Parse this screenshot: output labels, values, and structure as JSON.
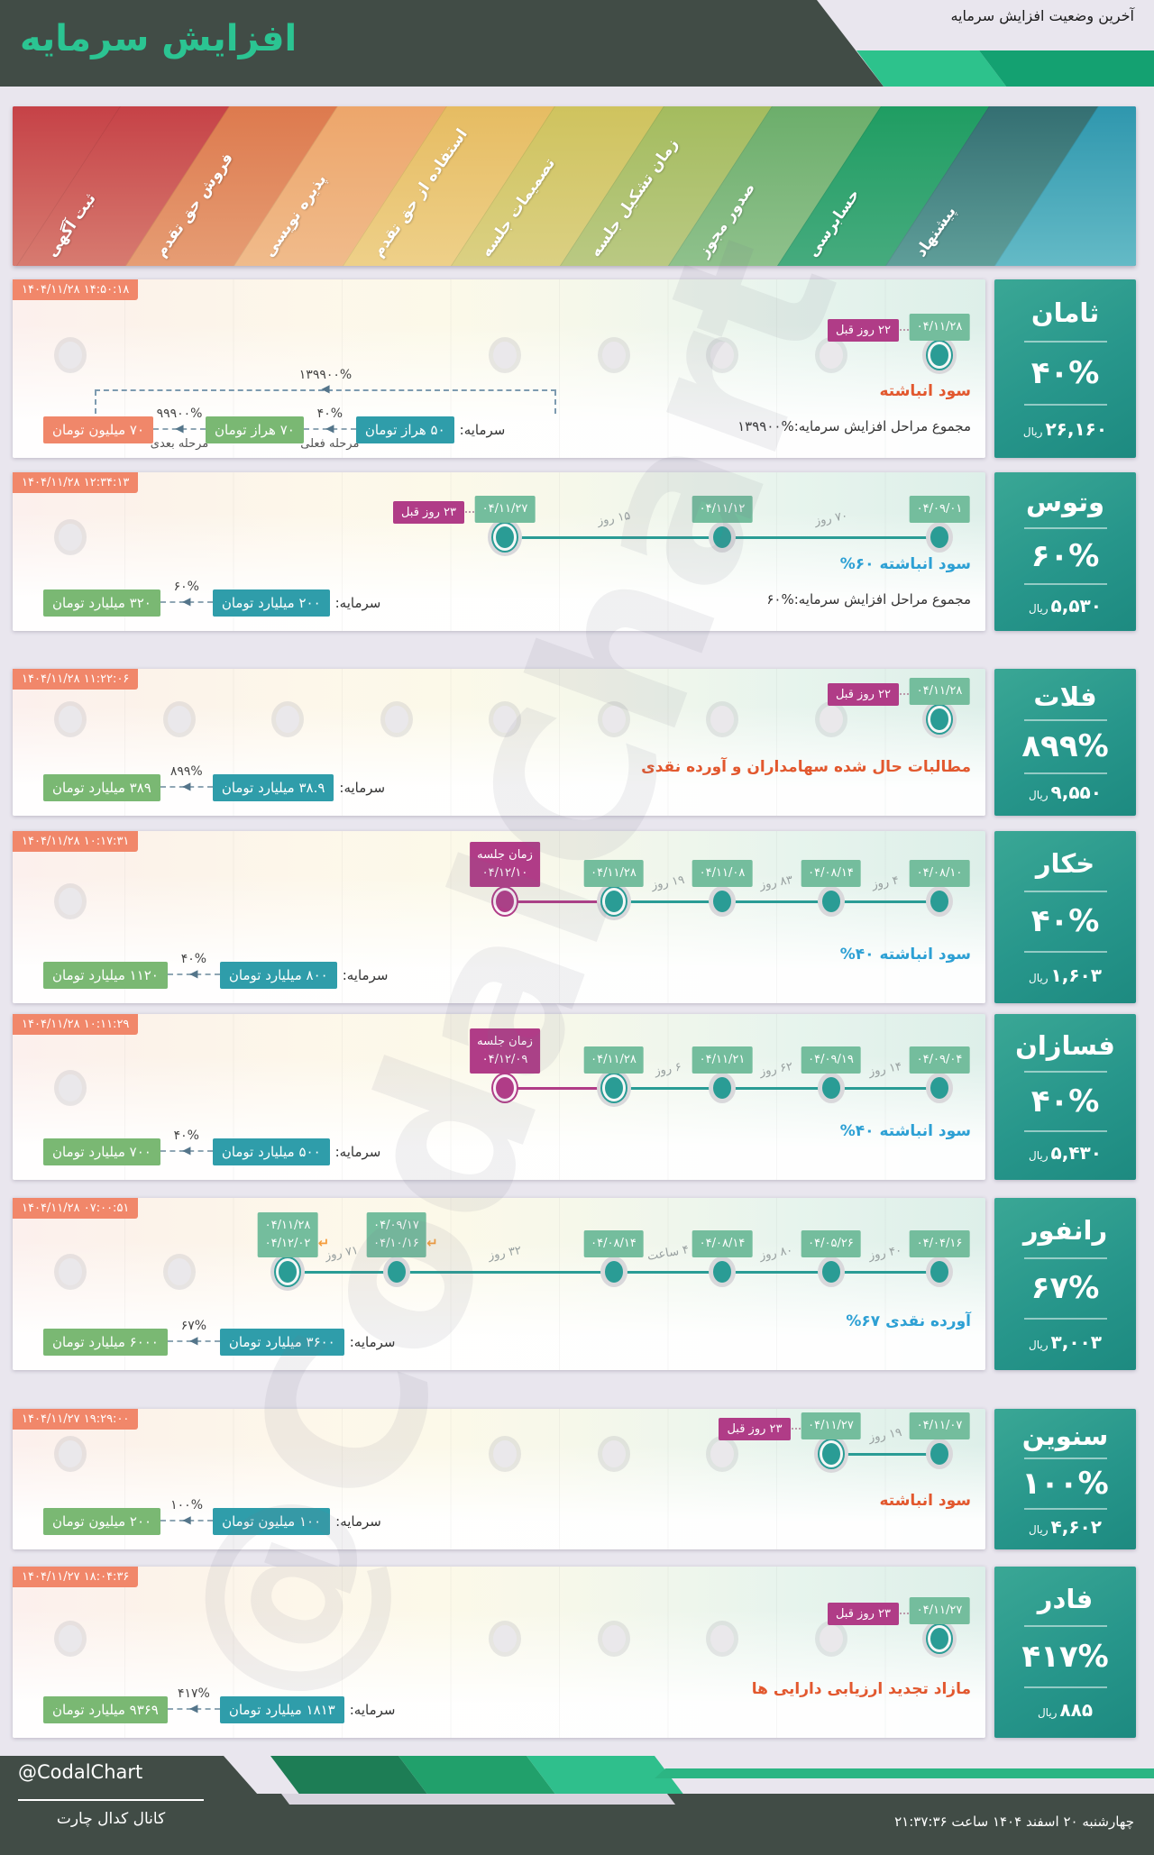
{
  "header": {
    "title": "افزایش سرمایه",
    "top_right": "آخرین وضعیت افزایش سرمایه"
  },
  "watermark": "@CodalChart",
  "stages": [
    "پیشنهاد",
    "حسابرسی",
    "صدور مجوز",
    "زمان تشکیل جلسه",
    "تصمیمات جلسه",
    "استفاده از حق تقدم",
    "پذیره نویسی",
    "فروش حق تقدم",
    "ثبت آگهی"
  ],
  "colors": {
    "accent_teal": "#2a9c95",
    "magenta": "#b03c87",
    "badge_green": "#74bd9d",
    "badge_salmon": "#f0876a",
    "badge_capital": "#2f9daa",
    "badge_result": "#7ab873",
    "status_orange": "#e2582e",
    "status_blue": "#2da0d4",
    "dark": "#414c46",
    "title_green": "#2bc492",
    "ribbon": [
      [
        "#c64247",
        "#d77b70"
      ],
      [
        "#dd7a4e",
        "#e69d74"
      ],
      [
        "#eda66b",
        "#f0bb8b"
      ],
      [
        "#e6bc62",
        "#eed089"
      ],
      [
        "#cfc35e",
        "#dbd083"
      ],
      [
        "#a4bc5e",
        "#bac983"
      ],
      [
        "#6cae6b",
        "#8fc18c"
      ],
      [
        "#1f9d62",
        "#46ab7e"
      ],
      [
        "#346f72",
        "#5f9e99"
      ],
      [
        "#2f97ae",
        "#64bac6"
      ]
    ]
  },
  "rows": [
    {
      "name": "ثامان",
      "pct": "۴۰%",
      "price": "۲۶,۱۶۰",
      "unit": "ریال",
      "timestamp": "۱۴۰۴/۱۱/۲۸ ۱۴:۵۰:۱۸",
      "status": {
        "text": "سود انباشته",
        "color": "orange"
      },
      "total": "مجموع مراحل افزایش سرمایه:%۱۳۹۹۰۰",
      "timeline": {
        "dots": [
          {
            "pos": 8,
            "state": "current"
          }
        ],
        "ghosts": [
          0,
          4,
          5,
          6,
          7
        ],
        "lines": [],
        "badges": [
          {
            "pos": 8,
            "lines": [
              "۰۴/۱۱/۲۸"
            ],
            "color": "green",
            "tag": "۲۲ روز قبل"
          }
        ],
        "gaps": []
      },
      "chain": {
        "label": "سرمایه:",
        "start": "۵۰ هراز تومان",
        "steps": [
          {
            "pct": "۴۰%",
            "sub": "مرحله فعلی",
            "value": "۷۰ هراز تومان",
            "color": "green"
          },
          {
            "pct": "۹۹۹۰۰%",
            "sub": "مرحله بعدی",
            "value": "۷۰ میلیون تومان",
            "color": "salmon"
          }
        ],
        "overline_pct": "۱۳۹۹۰۰%"
      }
    },
    {
      "name": "وتوس",
      "pct": "۶۰%",
      "price": "۵,۵۳۰",
      "unit": "ریال",
      "timestamp": "۱۴۰۴/۱۱/۲۸ ۱۲:۳۴:۱۳",
      "status": {
        "text": "%۶۰ سود انباشته",
        "color": "blue"
      },
      "total": "مجموع مراحل افزایش سرمایه:%۶۰",
      "timeline": {
        "dots": [
          {
            "pos": 4,
            "state": "current"
          },
          {
            "pos": 6,
            "state": "done"
          },
          {
            "pos": 8,
            "state": "done"
          }
        ],
        "ghosts": [
          0
        ],
        "lines": [
          {
            "from": 4,
            "to": 8,
            "color": "teal"
          }
        ],
        "badges": [
          {
            "pos": 4,
            "lines": [
              "۰۴/۱۱/۲۷"
            ],
            "color": "green",
            "tag": "۲۳ روز قبل"
          },
          {
            "pos": 6,
            "lines": [
              "۰۴/۱۱/۱۲"
            ],
            "color": "green"
          },
          {
            "pos": 8,
            "lines": [
              "۰۴/۰۹/۰۱"
            ],
            "color": "green"
          }
        ],
        "gaps": [
          {
            "from": 4,
            "to": 6,
            "text": "۱۵ روز"
          },
          {
            "from": 6,
            "to": 8,
            "text": "۷۰ روز"
          }
        ]
      },
      "chain": {
        "label": "سرمایه:",
        "start": "۲۰۰ میلیارد تومان",
        "steps": [
          {
            "pct": "۶۰%",
            "value": "۳۲۰ میلیارد تومان",
            "color": "green"
          }
        ]
      }
    },
    {
      "name": "فلات",
      "pct": "۸۹۹%",
      "price": "۹,۵۵۰",
      "unit": "ریال",
      "timestamp": "۱۴۰۴/۱۱/۲۸ ۱۱:۲۲:۰۶",
      "status": {
        "text": "مطالبات حال شده سهامداران و آورده نقدی",
        "color": "orange"
      },
      "total": null,
      "timeline": {
        "dots": [
          {
            "pos": 8,
            "state": "current"
          }
        ],
        "ghosts": [
          0,
          1,
          2,
          3,
          4,
          5,
          6,
          7
        ],
        "lines": [],
        "badges": [
          {
            "pos": 8,
            "lines": [
              "۰۴/۱۱/۲۸"
            ],
            "color": "green",
            "tag": "۲۲ روز قبل"
          }
        ],
        "gaps": []
      },
      "chain": {
        "label": "سرمایه:",
        "start": "۳۸.۹ میلیارد تومان",
        "steps": [
          {
            "pct": "۸۹۹%",
            "value": "۳۸۹ میلیارد تومان",
            "color": "green"
          }
        ]
      }
    },
    {
      "name": "خکار",
      "pct": "۴۰%",
      "price": "۱,۶۰۳",
      "unit": "ریال",
      "timestamp": "۱۴۰۴/۱۱/۲۸ ۱۰:۱۷:۳۱",
      "status": {
        "text": "%۴۰ سود انباشته",
        "color": "blue"
      },
      "total": null,
      "timeline": {
        "dots": [
          {
            "pos": 4,
            "state": "magenta"
          },
          {
            "pos": 5,
            "state": "current"
          },
          {
            "pos": 6,
            "state": "done"
          },
          {
            "pos": 7,
            "state": "done"
          },
          {
            "pos": 8,
            "state": "done"
          }
        ],
        "ghosts": [
          0
        ],
        "lines": [
          {
            "from": 4,
            "to": 5,
            "color": "magenta"
          },
          {
            "from": 5,
            "to": 8,
            "color": "teal"
          }
        ],
        "badges": [
          {
            "pos": 4,
            "lines": [
              "زمان جلسه",
              "۰۴/۱۲/۱۰"
            ],
            "color": "magenta"
          },
          {
            "pos": 5,
            "lines": [
              "۰۴/۱۱/۲۸"
            ],
            "color": "green"
          },
          {
            "pos": 6,
            "lines": [
              "۰۴/۱۱/۰۸"
            ],
            "color": "green"
          },
          {
            "pos": 7,
            "lines": [
              "۰۴/۰۸/۱۴"
            ],
            "color": "green"
          },
          {
            "pos": 8,
            "lines": [
              "۰۴/۰۸/۱۰"
            ],
            "color": "green"
          }
        ],
        "gaps": [
          {
            "from": 5,
            "to": 6,
            "text": "۱۹ روز"
          },
          {
            "from": 6,
            "to": 7,
            "text": "۸۳ روز"
          },
          {
            "from": 7,
            "to": 8,
            "text": "۴ روز"
          }
        ]
      },
      "chain": {
        "label": "سرمایه:",
        "start": "۸۰۰ میلیارد تومان",
        "steps": [
          {
            "pct": "۴۰%",
            "value": "۱۱۲۰ میلیارد تومان",
            "color": "green"
          }
        ]
      }
    },
    {
      "name": "فسازان",
      "pct": "۴۰%",
      "price": "۵,۴۳۰",
      "unit": "ریال",
      "timestamp": "۱۴۰۴/۱۱/۲۸ ۱۰:۱۱:۲۹",
      "status": {
        "text": "%۴۰ سود انباشته",
        "color": "blue"
      },
      "total": null,
      "timeline": {
        "dots": [
          {
            "pos": 4,
            "state": "magenta"
          },
          {
            "pos": 5,
            "state": "current"
          },
          {
            "pos": 6,
            "state": "done"
          },
          {
            "pos": 7,
            "state": "done"
          },
          {
            "pos": 8,
            "state": "done"
          }
        ],
        "ghosts": [
          0
        ],
        "lines": [
          {
            "from": 4,
            "to": 5,
            "color": "magenta"
          },
          {
            "from": 5,
            "to": 8,
            "color": "teal"
          }
        ],
        "badges": [
          {
            "pos": 4,
            "lines": [
              "زمان جلسه",
              "۰۴/۱۲/۰۹"
            ],
            "color": "magenta"
          },
          {
            "pos": 5,
            "lines": [
              "۰۴/۱۱/۲۸"
            ],
            "color": "green"
          },
          {
            "pos": 6,
            "lines": [
              "۰۴/۱۱/۲۱"
            ],
            "color": "green"
          },
          {
            "pos": 7,
            "lines": [
              "۰۴/۰۹/۱۹"
            ],
            "color": "green"
          },
          {
            "pos": 8,
            "lines": [
              "۰۴/۰۹/۰۴"
            ],
            "color": "green"
          }
        ],
        "gaps": [
          {
            "from": 5,
            "to": 6,
            "text": "۶ روز"
          },
          {
            "from": 6,
            "to": 7,
            "text": "۶۲ روز"
          },
          {
            "from": 7,
            "to": 8,
            "text": "۱۴ روز"
          }
        ]
      },
      "chain": {
        "label": "سرمایه:",
        "start": "۵۰۰ میلیارد تومان",
        "steps": [
          {
            "pct": "۴۰%",
            "value": "۷۰۰ میلیارد تومان",
            "color": "green"
          }
        ]
      }
    },
    {
      "name": "رانفور",
      "pct": "۶۷%",
      "price": "۳,۰۰۳",
      "unit": "ریال",
      "timestamp": "۱۴۰۴/۱۱/۲۸ ۰۷:۰۰:۵۱",
      "status": {
        "text": "%۶۷ آورده نقدی",
        "color": "blue"
      },
      "total": null,
      "timeline": {
        "dots": [
          {
            "pos": 2,
            "state": "current"
          },
          {
            "pos": 3,
            "state": "done"
          },
          {
            "pos": 5,
            "state": "done"
          },
          {
            "pos": 6,
            "state": "done"
          },
          {
            "pos": 7,
            "state": "done"
          },
          {
            "pos": 8,
            "state": "done"
          }
        ],
        "ghosts": [
          0,
          1
        ],
        "lines": [
          {
            "from": 2,
            "to": 8,
            "color": "teal"
          }
        ],
        "badges": [
          {
            "pos": 2,
            "lines": [
              "۰۴/۱۱/۲۸",
              "۰۴/۱۲/۰۲"
            ],
            "color": "green",
            "range": true
          },
          {
            "pos": 3,
            "lines": [
              "۰۴/۰۹/۱۷",
              "۰۴/۱۰/۱۶"
            ],
            "color": "green",
            "range": true
          },
          {
            "pos": 5,
            "lines": [
              "۰۴/۰۸/۱۴"
            ],
            "color": "green"
          },
          {
            "pos": 6,
            "lines": [
              "۰۴/۰۸/۱۴"
            ],
            "color": "green"
          },
          {
            "pos": 7,
            "lines": [
              "۰۴/۰۵/۲۶"
            ],
            "color": "green"
          },
          {
            "pos": 8,
            "lines": [
              "۰۴/۰۴/۱۶"
            ],
            "color": "green"
          }
        ],
        "gaps": [
          {
            "from": 2,
            "to": 3,
            "text": "۷۱ روز"
          },
          {
            "from": 3,
            "to": 5,
            "text": "۳۲ روز"
          },
          {
            "from": 5,
            "to": 6,
            "text": "۴ ساعت"
          },
          {
            "from": 6,
            "to": 7,
            "text": "۸۰ روز"
          },
          {
            "from": 7,
            "to": 8,
            "text": "۴۰ روز"
          }
        ]
      },
      "chain": {
        "label": "سرمایه:",
        "start": "۳۶۰۰ میلیارد تومان",
        "steps": [
          {
            "pct": "۶۷%",
            "value": "۶۰۰۰ میلیارد تومان",
            "color": "green"
          }
        ]
      }
    },
    {
      "name": "سنوین",
      "pct": "۱۰۰%",
      "price": "۴,۶۰۲",
      "unit": "ریال",
      "timestamp": "۱۴۰۴/۱۱/۲۷ ۱۹:۲۹:۰۰",
      "status": {
        "text": "سود انباشته",
        "color": "orange"
      },
      "total": null,
      "timeline": {
        "dots": [
          {
            "pos": 7,
            "state": "current"
          },
          {
            "pos": 8,
            "state": "done"
          }
        ],
        "ghosts": [
          0,
          4,
          5,
          6
        ],
        "lines": [
          {
            "from": 7,
            "to": 8,
            "color": "teal"
          }
        ],
        "badges": [
          {
            "pos": 7,
            "lines": [
              "۰۴/۱۱/۲۷"
            ],
            "color": "green",
            "tag": "۲۳ روز قبل"
          },
          {
            "pos": 8,
            "lines": [
              "۰۴/۱۱/۰۷"
            ],
            "color": "green"
          }
        ],
        "gaps": [
          {
            "from": 7,
            "to": 8,
            "text": "۱۹ روز"
          }
        ]
      },
      "chain": {
        "label": "سرمایه:",
        "start": "۱۰۰ میلیون تومان",
        "steps": [
          {
            "pct": "۱۰۰%",
            "value": "۲۰۰ میلیون تومان",
            "color": "green"
          }
        ]
      }
    },
    {
      "name": "فادر",
      "pct": "۴۱۷%",
      "price": "۸۸۵",
      "unit": "ریال",
      "timestamp": "۱۴۰۴/۱۱/۲۷ ۱۸:۰۴:۳۶",
      "status": {
        "text": "مازاد تجدید ارزیابی دارایی ها",
        "color": "orange"
      },
      "total": null,
      "timeline": {
        "dots": [
          {
            "pos": 8,
            "state": "current"
          }
        ],
        "ghosts": [
          0,
          4,
          5,
          6,
          7
        ],
        "lines": [],
        "badges": [
          {
            "pos": 8,
            "lines": [
              "۰۴/۱۱/۲۷"
            ],
            "color": "green",
            "tag": "۲۳ روز قبل"
          }
        ],
        "gaps": []
      },
      "chain": {
        "label": "سرمایه:",
        "start": "۱۸۱۳ میلیارد تومان",
        "steps": [
          {
            "pct": "۴۱۷%",
            "value": "۹۳۶۹ میلیارد تومان",
            "color": "green"
          }
        ]
      }
    }
  ],
  "footer": {
    "handle": "@CodalChart",
    "channel": "کانال کدال چارت",
    "datetime": "چهارشنبه ۲۰ اسفند ۱۴۰۴ ساعت ۲۱:۳۷:۳۶"
  }
}
